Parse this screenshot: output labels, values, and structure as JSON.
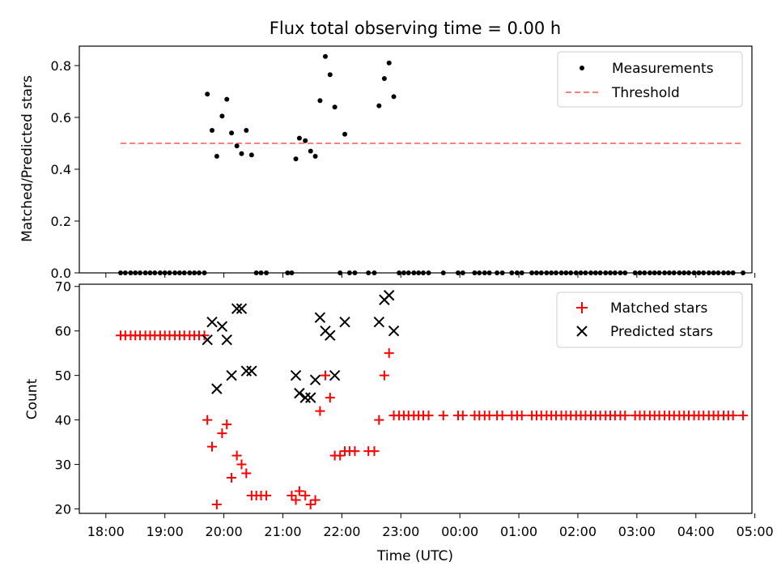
{
  "chart_data": [
    {
      "type": "scatter",
      "title": "Flux total observing time = 0.00 h",
      "xlabel": "",
      "ylabel": "Matched/Predicted stars",
      "ylim": [
        0,
        0.875
      ],
      "yticks": [
        "0.0",
        "0.2",
        "0.4",
        "0.6",
        "0.8"
      ],
      "xlim_hours_since_18": [
        -0.45,
        10.95
      ],
      "legend": {
        "placement": "top-right",
        "entries": [
          "Measurements",
          "Threshold"
        ]
      },
      "colors": {
        "measurements": "#000000",
        "threshold": "#ff7f7f"
      },
      "series": [
        {
          "name": "Measurements",
          "marker": "dot",
          "points": [
            [
              18.25,
              0
            ],
            [
              18.33,
              0
            ],
            [
              18.42,
              0
            ],
            [
              18.5,
              0
            ],
            [
              18.58,
              0
            ],
            [
              18.67,
              0
            ],
            [
              18.75,
              0
            ],
            [
              18.83,
              0
            ],
            [
              18.92,
              0
            ],
            [
              19.0,
              0
            ],
            [
              19.08,
              0
            ],
            [
              19.17,
              0
            ],
            [
              19.25,
              0
            ],
            [
              19.33,
              0
            ],
            [
              19.42,
              0
            ],
            [
              19.5,
              0
            ],
            [
              19.58,
              0
            ],
            [
              19.67,
              0
            ],
            [
              19.72,
              0.69
            ],
            [
              19.8,
              0.55
            ],
            [
              19.88,
              0.45
            ],
            [
              19.97,
              0.605
            ],
            [
              20.05,
              0.67
            ],
            [
              20.13,
              0.54
            ],
            [
              20.22,
              0.49
            ],
            [
              20.3,
              0.46
            ],
            [
              20.38,
              0.55
            ],
            [
              20.47,
              0.455
            ],
            [
              20.55,
              0
            ],
            [
              20.63,
              0
            ],
            [
              20.72,
              0
            ],
            [
              21.08,
              0
            ],
            [
              21.15,
              0
            ],
            [
              21.22,
              0.44
            ],
            [
              21.28,
              0.52
            ],
            [
              21.38,
              0.51
            ],
            [
              21.47,
              0.47
            ],
            [
              21.55,
              0.45
            ],
            [
              21.63,
              0.665
            ],
            [
              21.72,
              0.835
            ],
            [
              21.8,
              0.765
            ],
            [
              21.88,
              0.64
            ],
            [
              22.05,
              0.535
            ],
            [
              21.97,
              0
            ],
            [
              22.13,
              0
            ],
            [
              22.22,
              0
            ],
            [
              22.45,
              0
            ],
            [
              22.55,
              0
            ],
            [
              22.63,
              0.645
            ],
            [
              22.72,
              0.75
            ],
            [
              22.8,
              0.81
            ],
            [
              22.88,
              0.68
            ],
            [
              22.97,
              0
            ],
            [
              23.05,
              0
            ],
            [
              23.13,
              0
            ],
            [
              23.22,
              0
            ],
            [
              23.3,
              0
            ],
            [
              23.38,
              0
            ],
            [
              23.47,
              0
            ],
            [
              23.72,
              0
            ],
            [
              23.97,
              0
            ],
            [
              24.05,
              0
            ],
            [
              24.25,
              0
            ],
            [
              24.33,
              0
            ],
            [
              24.42,
              0
            ],
            [
              24.5,
              0
            ],
            [
              24.63,
              0
            ],
            [
              24.72,
              0
            ],
            [
              24.88,
              0
            ],
            [
              24.97,
              0
            ],
            [
              25.05,
              0
            ],
            [
              25.22,
              0
            ],
            [
              25.3,
              0
            ],
            [
              25.38,
              0
            ],
            [
              25.47,
              0
            ],
            [
              25.55,
              0
            ],
            [
              25.63,
              0
            ],
            [
              25.72,
              0
            ],
            [
              25.8,
              0
            ],
            [
              25.88,
              0
            ],
            [
              25.97,
              0
            ],
            [
              26.05,
              0
            ],
            [
              26.13,
              0
            ],
            [
              26.22,
              0
            ],
            [
              26.3,
              0
            ],
            [
              26.38,
              0
            ],
            [
              26.47,
              0
            ],
            [
              26.55,
              0
            ],
            [
              26.63,
              0
            ],
            [
              26.72,
              0
            ],
            [
              26.8,
              0
            ],
            [
              26.97,
              0
            ],
            [
              27.05,
              0
            ],
            [
              27.13,
              0
            ],
            [
              27.22,
              0
            ],
            [
              27.3,
              0
            ],
            [
              27.38,
              0
            ],
            [
              27.47,
              0
            ],
            [
              27.55,
              0
            ],
            [
              27.63,
              0
            ],
            [
              27.72,
              0
            ],
            [
              27.8,
              0
            ],
            [
              27.88,
              0
            ],
            [
              27.97,
              0
            ],
            [
              28.05,
              0
            ],
            [
              28.13,
              0
            ],
            [
              28.22,
              0
            ],
            [
              28.3,
              0
            ],
            [
              28.38,
              0
            ],
            [
              28.47,
              0
            ],
            [
              28.55,
              0
            ],
            [
              28.63,
              0
            ],
            [
              28.8,
              0
            ]
          ]
        },
        {
          "name": "Threshold",
          "style": "dashed",
          "points": [
            [
              18.25,
              0.5
            ],
            [
              28.8,
              0.5
            ]
          ]
        }
      ]
    },
    {
      "type": "scatter",
      "title": "",
      "xlabel": "Time (UTC)",
      "ylabel": "Count",
      "ylim": [
        19,
        70.5
      ],
      "yticks": [
        "20",
        "30",
        "40",
        "50",
        "60",
        "70"
      ],
      "xticks": [
        "18:00",
        "19:00",
        "20:00",
        "21:00",
        "22:00",
        "23:00",
        "00:00",
        "01:00",
        "02:00",
        "03:00",
        "04:00",
        "05:00"
      ],
      "legend": {
        "placement": "top-right",
        "entries": [
          "Matched stars",
          "Predicted stars"
        ]
      },
      "colors": {
        "matched": "#ff0000",
        "predicted": "#000000"
      },
      "series": [
        {
          "name": "Matched stars",
          "marker": "plus",
          "points": [
            [
              18.25,
              59
            ],
            [
              18.33,
              59
            ],
            [
              18.42,
              59
            ],
            [
              18.5,
              59
            ],
            [
              18.58,
              59
            ],
            [
              18.67,
              59
            ],
            [
              18.75,
              59
            ],
            [
              18.83,
              59
            ],
            [
              18.92,
              59
            ],
            [
              19.0,
              59
            ],
            [
              19.08,
              59
            ],
            [
              19.17,
              59
            ],
            [
              19.25,
              59
            ],
            [
              19.33,
              59
            ],
            [
              19.42,
              59
            ],
            [
              19.5,
              59
            ],
            [
              19.58,
              59
            ],
            [
              19.67,
              59
            ],
            [
              19.72,
              40
            ],
            [
              19.8,
              34
            ],
            [
              19.88,
              21
            ],
            [
              19.97,
              37
            ],
            [
              20.05,
              39
            ],
            [
              20.13,
              27
            ],
            [
              20.22,
              32
            ],
            [
              20.3,
              30
            ],
            [
              20.38,
              28
            ],
            [
              20.47,
              23
            ],
            [
              20.55,
              23
            ],
            [
              20.63,
              23
            ],
            [
              20.72,
              23
            ],
            [
              21.15,
              23
            ],
            [
              21.22,
              22
            ],
            [
              21.28,
              24
            ],
            [
              21.38,
              23
            ],
            [
              21.47,
              21
            ],
            [
              21.55,
              22
            ],
            [
              21.63,
              42
            ],
            [
              21.72,
              50
            ],
            [
              21.8,
              45
            ],
            [
              21.88,
              32
            ],
            [
              21.97,
              32
            ],
            [
              22.05,
              33
            ],
            [
              22.13,
              33
            ],
            [
              22.22,
              33
            ],
            [
              22.45,
              33
            ],
            [
              22.55,
              33
            ],
            [
              22.63,
              40
            ],
            [
              22.72,
              50
            ],
            [
              22.8,
              55
            ],
            [
              22.88,
              41
            ],
            [
              22.97,
              41
            ],
            [
              23.05,
              41
            ],
            [
              23.13,
              41
            ],
            [
              23.22,
              41
            ],
            [
              23.3,
              41
            ],
            [
              23.38,
              41
            ],
            [
              23.47,
              41
            ],
            [
              23.72,
              41
            ],
            [
              23.97,
              41
            ],
            [
              24.05,
              41
            ],
            [
              24.25,
              41
            ],
            [
              24.33,
              41
            ],
            [
              24.42,
              41
            ],
            [
              24.5,
              41
            ],
            [
              24.63,
              41
            ],
            [
              24.72,
              41
            ],
            [
              24.88,
              41
            ],
            [
              24.97,
              41
            ],
            [
              25.05,
              41
            ],
            [
              25.22,
              41
            ],
            [
              25.3,
              41
            ],
            [
              25.38,
              41
            ],
            [
              25.47,
              41
            ],
            [
              25.55,
              41
            ],
            [
              25.63,
              41
            ],
            [
              25.72,
              41
            ],
            [
              25.8,
              41
            ],
            [
              25.88,
              41
            ],
            [
              25.97,
              41
            ],
            [
              26.05,
              41
            ],
            [
              26.13,
              41
            ],
            [
              26.22,
              41
            ],
            [
              26.3,
              41
            ],
            [
              26.38,
              41
            ],
            [
              26.47,
              41
            ],
            [
              26.55,
              41
            ],
            [
              26.63,
              41
            ],
            [
              26.72,
              41
            ],
            [
              26.8,
              41
            ],
            [
              26.97,
              41
            ],
            [
              27.05,
              41
            ],
            [
              27.13,
              41
            ],
            [
              27.22,
              41
            ],
            [
              27.3,
              41
            ],
            [
              27.38,
              41
            ],
            [
              27.47,
              41
            ],
            [
              27.55,
              41
            ],
            [
              27.63,
              41
            ],
            [
              27.72,
              41
            ],
            [
              27.8,
              41
            ],
            [
              27.88,
              41
            ],
            [
              27.97,
              41
            ],
            [
              28.05,
              41
            ],
            [
              28.13,
              41
            ],
            [
              28.22,
              41
            ],
            [
              28.3,
              41
            ],
            [
              28.38,
              41
            ],
            [
              28.47,
              41
            ],
            [
              28.55,
              41
            ],
            [
              28.63,
              41
            ],
            [
              28.8,
              41
            ]
          ]
        },
        {
          "name": "Predicted stars",
          "marker": "x",
          "points": [
            [
              19.72,
              58
            ],
            [
              19.8,
              62
            ],
            [
              19.88,
              47
            ],
            [
              19.97,
              61
            ],
            [
              20.05,
              58
            ],
            [
              20.13,
              50
            ],
            [
              20.22,
              65
            ],
            [
              20.3,
              65
            ],
            [
              20.38,
              51
            ],
            [
              20.47,
              51
            ],
            [
              21.22,
              50
            ],
            [
              21.28,
              46
            ],
            [
              21.38,
              45
            ],
            [
              21.47,
              45
            ],
            [
              21.55,
              49
            ],
            [
              21.63,
              63
            ],
            [
              21.72,
              60
            ],
            [
              21.8,
              59
            ],
            [
              21.88,
              50
            ],
            [
              22.05,
              62
            ],
            [
              22.63,
              62
            ],
            [
              22.72,
              67
            ],
            [
              22.8,
              68
            ],
            [
              22.88,
              60
            ]
          ]
        }
      ]
    }
  ]
}
